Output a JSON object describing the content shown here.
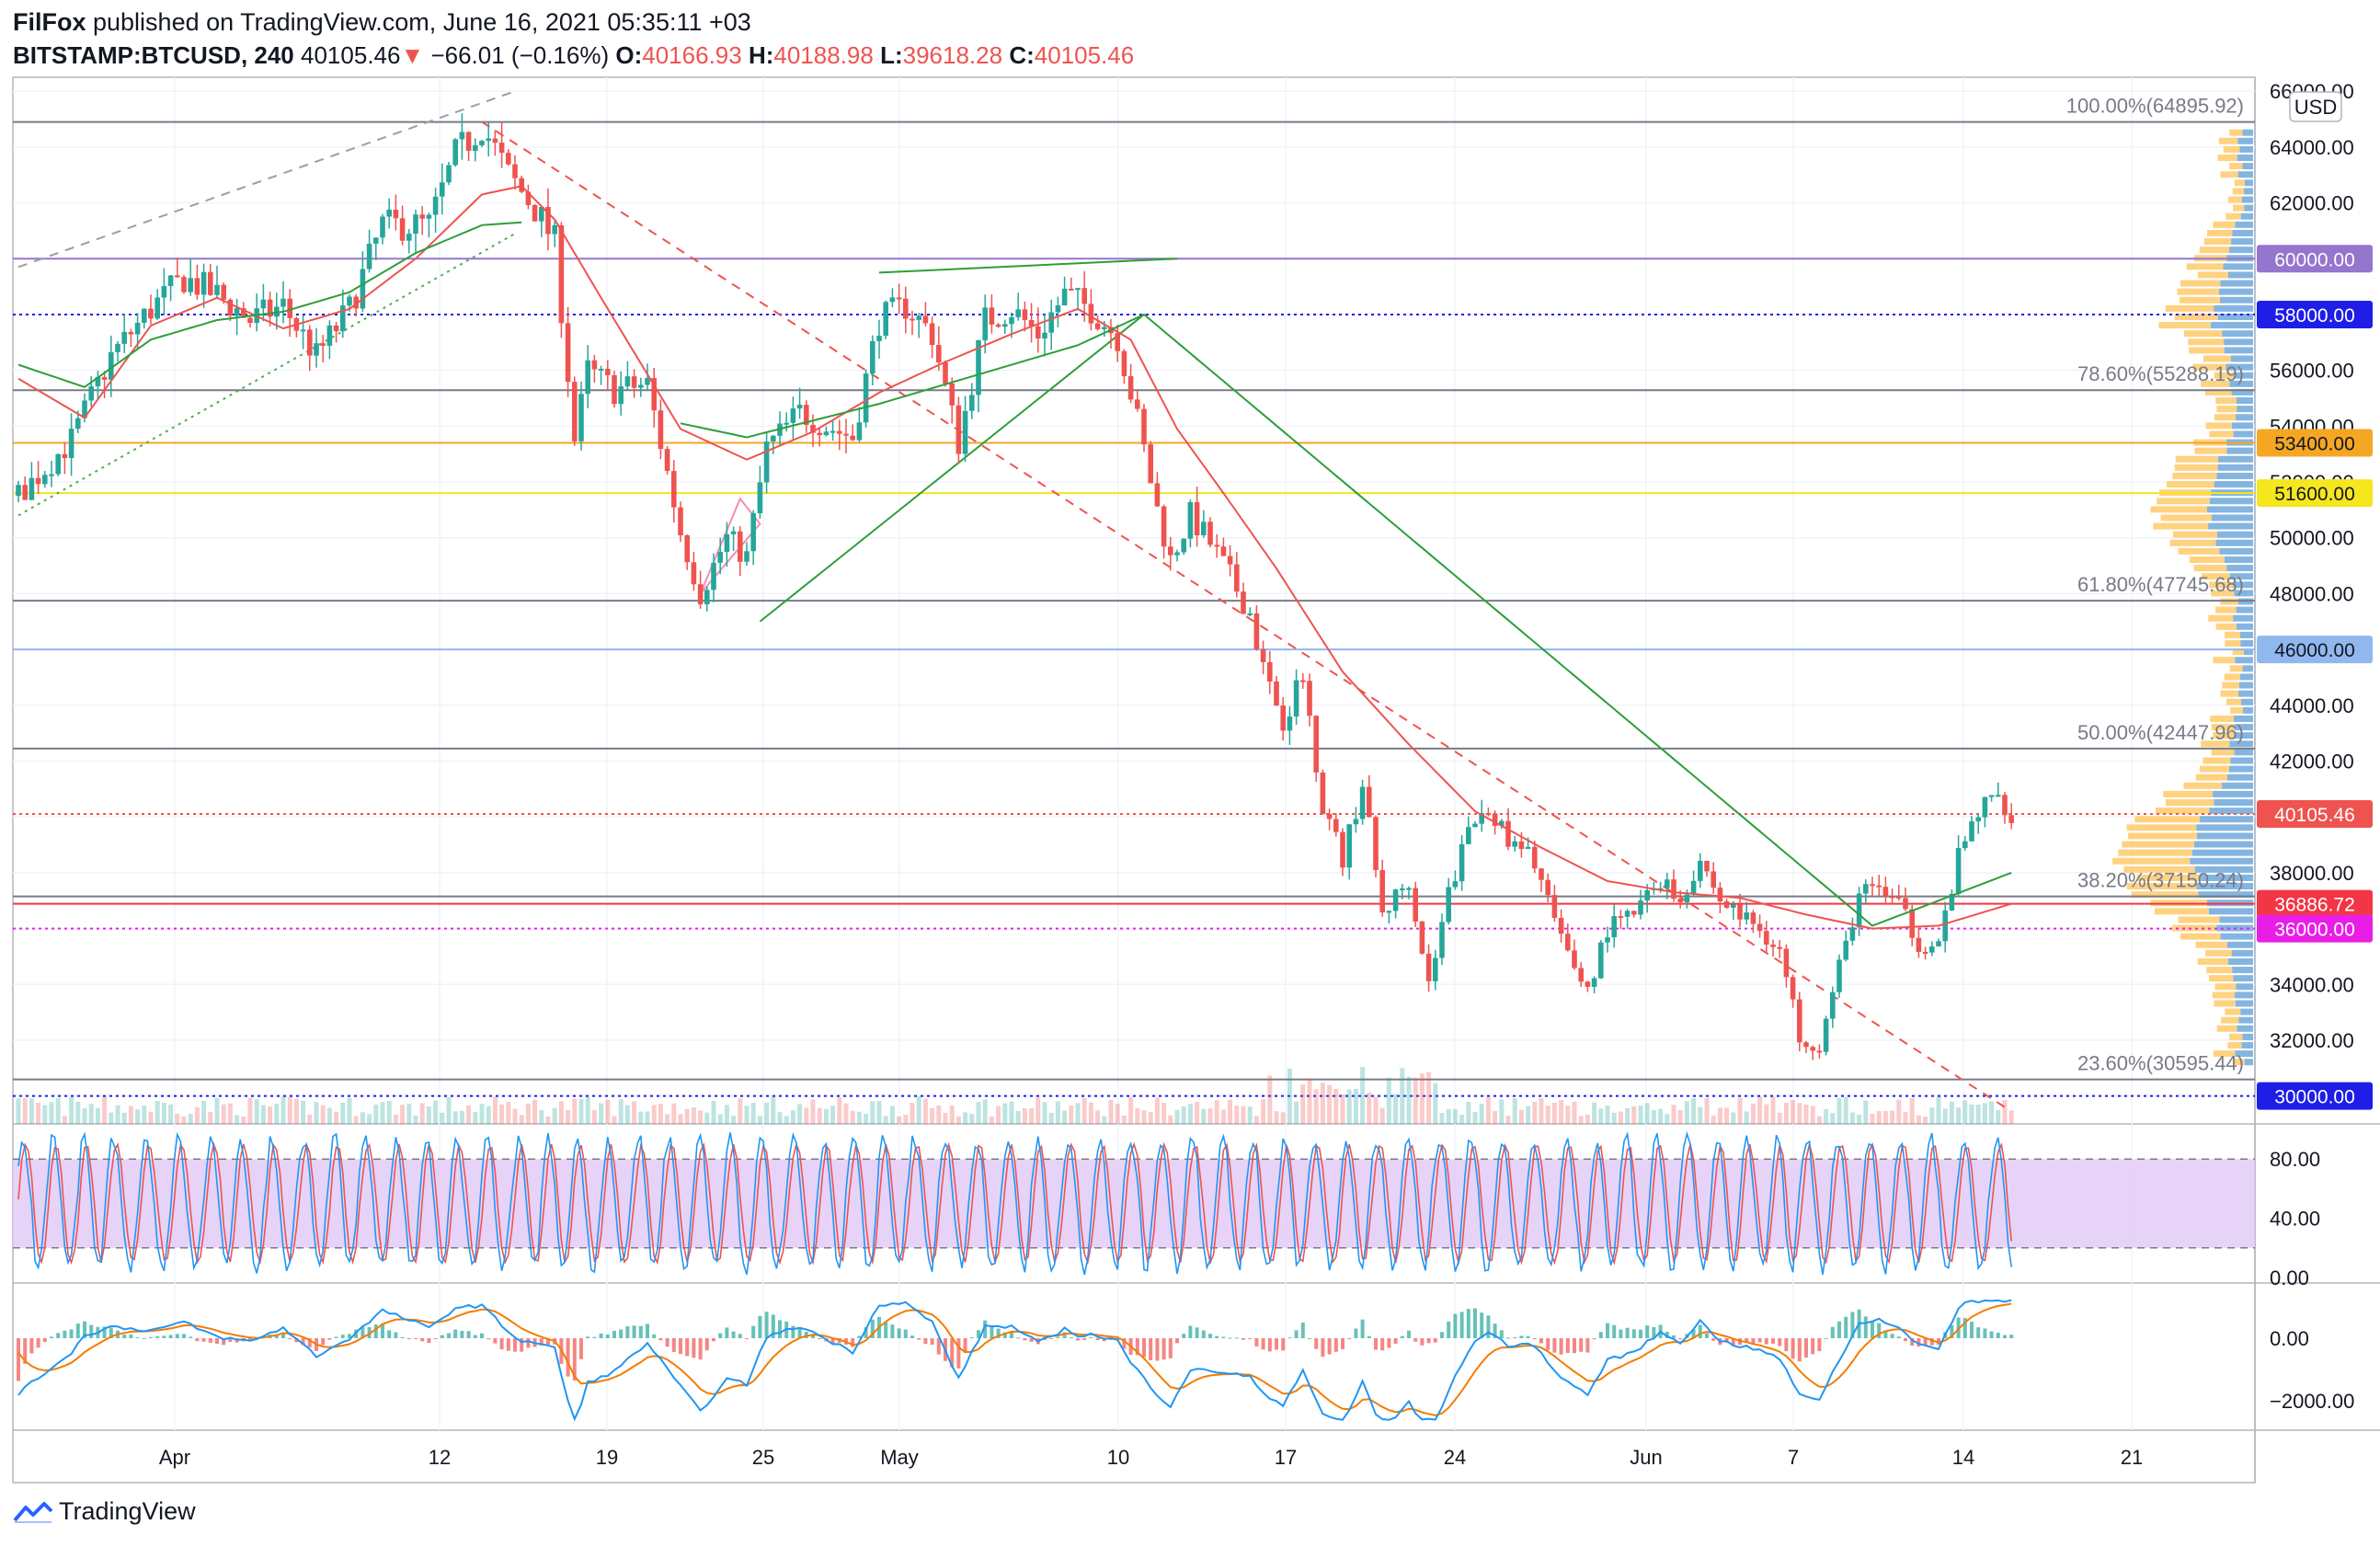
{
  "header": {
    "publisher": "FilFox",
    "published_text": " published on TradingView.com, June 16, 2021 05:35:11 +03",
    "symbol": "BITSTAMP:BTCUSD, 240",
    "last": "40105.46",
    "change_arrow": "▼",
    "change": "−66.01 (−0.16%)",
    "o_label": "O:",
    "o": "40166.93",
    "h_label": "H:",
    "h": "40188.98",
    "l_label": "L:",
    "l": "39618.28",
    "c_label": "C:",
    "c": "40105.46"
  },
  "footer": {
    "brand": "TradingView"
  },
  "colors": {
    "down": "#ef5350",
    "up": "#26a69a",
    "ma": "#ef5350",
    "ma2": "#2e9e3a",
    "stoch_band": "#e1c8f5",
    "k_line": "#2196f3",
    "d_line": "#ef5350",
    "macd": "#2196f3",
    "signal": "#f57c00"
  },
  "chart_data": {
    "type": "candlestick",
    "currency": "USD",
    "price_axis_ticks": [
      "66000.00",
      "64000.00",
      "62000.00",
      "60000.00",
      "58000.00",
      "56000.00",
      "54000.00",
      "52000.00",
      "50000.00",
      "48000.00",
      "46000.00",
      "44000.00",
      "42000.00",
      "40000.00",
      "38000.00",
      "36000.00",
      "34000.00",
      "32000.00",
      "30000.00"
    ],
    "ylim": [
      29000,
      66500
    ],
    "time_axis_ticks": [
      "Apr",
      "12",
      "19",
      "25",
      "May",
      "10",
      "17",
      "24",
      "Jun",
      "7",
      "14",
      "21"
    ],
    "last_price": 40105.46,
    "horizontal_levels": [
      {
        "label": "60000.00",
        "value": 60000,
        "color": "#9575cd"
      },
      {
        "label": "58000.00",
        "value": 58000,
        "color": "#1e1ee6"
      },
      {
        "label": "53400.00",
        "value": 53400,
        "color": "#f5a623"
      },
      {
        "label": "51600.00",
        "value": 51600,
        "color": "#f5e61e"
      },
      {
        "label": "46000.00",
        "value": 46000,
        "color": "#90b8ee"
      },
      {
        "label": "40105.46",
        "value": 40105.46,
        "color": "#ef5350"
      },
      {
        "label": "36886.72",
        "value": 36886.72,
        "color": "#f23645"
      },
      {
        "label": "36000.00",
        "value": 36000,
        "color": "#e91ee6"
      },
      {
        "label": "30000.00",
        "value": 30000,
        "color": "#1e1ee6"
      }
    ],
    "fibonacci": [
      {
        "label": "100.00%(64895.92)",
        "value": 64895.92
      },
      {
        "label": "78.60%(55288.19)",
        "value": 55288.19
      },
      {
        "label": "61.80%(47745.68)",
        "value": 47745.68
      },
      {
        "label": "50.00%(42447.96)",
        "value": 42447.96
      },
      {
        "label": "38.20%(37150.24)",
        "value": 37150.24
      },
      {
        "label": "23.60%(30595.44)",
        "value": 30595.44
      }
    ],
    "price_path": [
      [
        0,
        51500
      ],
      [
        8,
        53500
      ],
      [
        14,
        56500
      ],
      [
        20,
        58200
      ],
      [
        25,
        59300
      ],
      [
        30,
        58700
      ],
      [
        35,
        57800
      ],
      [
        40,
        58300
      ],
      [
        45,
        56500
      ],
      [
        50,
        58200
      ],
      [
        55,
        61200
      ],
      [
        62,
        61200
      ],
      [
        66,
        63700
      ],
      [
        70,
        64800
      ],
      [
        74,
        63000
      ],
      [
        78,
        61800
      ],
      [
        81,
        60600
      ],
      [
        84,
        53500
      ],
      [
        86,
        56000
      ],
      [
        90,
        55300
      ],
      [
        95,
        55500
      ],
      [
        100,
        50200
      ],
      [
        103,
        48000
      ],
      [
        107,
        50000
      ],
      [
        110,
        49300
      ],
      [
        113,
        53200
      ],
      [
        118,
        54500
      ],
      [
        122,
        54000
      ],
      [
        126,
        53600
      ],
      [
        130,
        57800
      ],
      [
        134,
        58300
      ],
      [
        138,
        57300
      ],
      [
        142,
        53400
      ],
      [
        146,
        57800
      ],
      [
        150,
        58200
      ],
      [
        154,
        57300
      ],
      [
        158,
        58700
      ],
      [
        162,
        58200
      ],
      [
        166,
        57200
      ],
      [
        169,
        54200
      ],
      [
        172,
        51000
      ],
      [
        174,
        49200
      ],
      [
        177,
        50800
      ],
      [
        180,
        49800
      ],
      [
        183,
        48600
      ],
      [
        186,
        47300
      ],
      [
        188,
        45300
      ],
      [
        191,
        43500
      ],
      [
        194,
        45000
      ],
      [
        197,
        40500
      ],
      [
        200,
        38500
      ],
      [
        203,
        41200
      ],
      [
        206,
        36500
      ],
      [
        210,
        37800
      ],
      [
        213,
        34000
      ],
      [
        216,
        37200
      ],
      [
        219,
        39500
      ],
      [
        222,
        40500
      ],
      [
        225,
        39000
      ],
      [
        229,
        38500
      ],
      [
        233,
        35500
      ],
      [
        237,
        33800
      ],
      [
        240,
        36000
      ],
      [
        244,
        36500
      ],
      [
        248,
        37800
      ],
      [
        251,
        37000
      ],
      [
        254,
        38500
      ],
      [
        257,
        37000
      ],
      [
        260,
        36500
      ],
      [
        263,
        36000
      ],
      [
        266,
        35200
      ],
      [
        269,
        32200
      ],
      [
        272,
        31800
      ],
      [
        275,
        34600
      ],
      [
        278,
        37200
      ],
      [
        281,
        37500
      ],
      [
        284,
        36800
      ],
      [
        287,
        35500
      ],
      [
        290,
        35400
      ],
      [
        293,
        38500
      ],
      [
        296,
        40200
      ],
      [
        299,
        40800
      ],
      [
        301,
        40105
      ]
    ],
    "ma_path": [
      [
        0,
        55700
      ],
      [
        10,
        54300
      ],
      [
        20,
        57600
      ],
      [
        30,
        58600
      ],
      [
        40,
        57500
      ],
      [
        50,
        58200
      ],
      [
        60,
        60000
      ],
      [
        70,
        62300
      ],
      [
        76,
        62600
      ],
      [
        81,
        61400
      ],
      [
        88,
        58600
      ],
      [
        100,
        53900
      ],
      [
        110,
        52800
      ],
      [
        120,
        53800
      ],
      [
        130,
        55200
      ],
      [
        140,
        56300
      ],
      [
        150,
        57300
      ],
      [
        160,
        58200
      ],
      [
        168,
        57100
      ],
      [
        175,
        53900
      ],
      [
        182,
        51600
      ],
      [
        190,
        48900
      ],
      [
        200,
        45200
      ],
      [
        210,
        42600
      ],
      [
        220,
        40200
      ],
      [
        230,
        38900
      ],
      [
        240,
        37700
      ],
      [
        250,
        37300
      ],
      [
        260,
        37100
      ],
      [
        270,
        36500
      ],
      [
        280,
        36000
      ],
      [
        290,
        36100
      ],
      [
        301,
        36886.72
      ]
    ],
    "ma2_path": [
      [
        0,
        56200
      ],
      [
        10,
        55400
      ],
      [
        20,
        57100
      ],
      [
        30,
        57800
      ],
      [
        40,
        58100
      ],
      [
        50,
        58800
      ],
      [
        60,
        60200
      ],
      [
        70,
        61200
      ],
      [
        76,
        61300
      ],
      [
        100,
        54100
      ],
      [
        110,
        53600
      ],
      [
        130,
        54800
      ],
      [
        150,
        56200
      ],
      [
        160,
        56900
      ],
      [
        170,
        58000
      ],
      [
        280,
        36100
      ],
      [
        290,
        37000
      ],
      [
        301,
        38000
      ]
    ],
    "drawings": {
      "upper_channel": [
        [
          0,
          59700
        ],
        [
          75,
          66000
        ]
      ],
      "lower_channel": [
        [
          0,
          50800
        ],
        [
          75,
          60900
        ]
      ],
      "downtrend": [
        [
          70,
          64900
        ],
        [
          300,
          29600
        ]
      ],
      "wedge_top": [
        [
          130,
          59500
        ],
        [
          175,
          60000
        ]
      ],
      "wedge_bottom": [
        [
          112,
          47000
        ],
        [
          170,
          58000
        ]
      ],
      "triangle": [
        [
          103,
          48000
        ],
        [
          109,
          51400
        ],
        [
          112,
          50500
        ]
      ]
    },
    "stoch": {
      "ylim": [
        0,
        100
      ],
      "band": [
        20,
        80
      ],
      "ticks": [
        "80.00",
        "40.00",
        "0.00"
      ]
    },
    "macd": {
      "ticks": [
        "0.00",
        "−2000.00"
      ]
    }
  }
}
